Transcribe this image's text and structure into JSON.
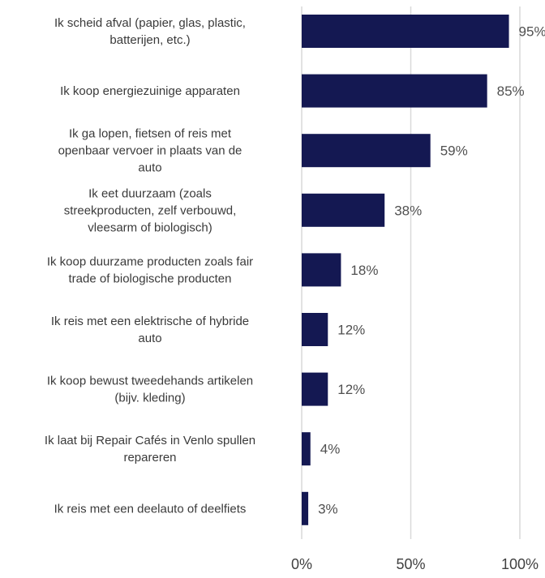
{
  "chart_data": {
    "type": "bar",
    "orientation": "horizontal",
    "title": "",
    "xlabel": "",
    "ylabel": "",
    "xlim": [
      0,
      100
    ],
    "grid": true,
    "legend": "none",
    "bar_color": "#141852",
    "gridline_color": "#d9d9d9",
    "categories": [
      [
        "Ik scheid afval (papier, glas, plastic,",
        "batterijen, etc.)"
      ],
      [
        "Ik koop energiezuinige apparaten"
      ],
      [
        "Ik ga lopen, fietsen of reis met",
        "openbaar vervoer in plaats van de",
        "auto"
      ],
      [
        "Ik eet duurzaam (zoals",
        "streekproducten, zelf verbouwd,",
        "vleesarm of biologisch)"
      ],
      [
        "Ik koop duurzame producten zoals fair",
        "trade of biologische producten"
      ],
      [
        "Ik reis met een elektrische of hybride",
        "auto"
      ],
      [
        "Ik koop bewust tweedehands artikelen",
        "(bijv. kleding)"
      ],
      [
        "Ik laat bij Repair Cafés in Venlo spullen",
        "repareren"
      ],
      [
        "Ik reis met een deelauto of deelfiets"
      ]
    ],
    "values": [
      95,
      85,
      59,
      38,
      18,
      12,
      12,
      4,
      3
    ],
    "value_labels": [
      "95%",
      "85%",
      "59%",
      "38%",
      "18%",
      "12%",
      "12%",
      "4%",
      "3%"
    ],
    "x_ticks": [
      0,
      50,
      100
    ],
    "x_tick_labels": [
      "0%",
      "50%",
      "100%"
    ]
  }
}
